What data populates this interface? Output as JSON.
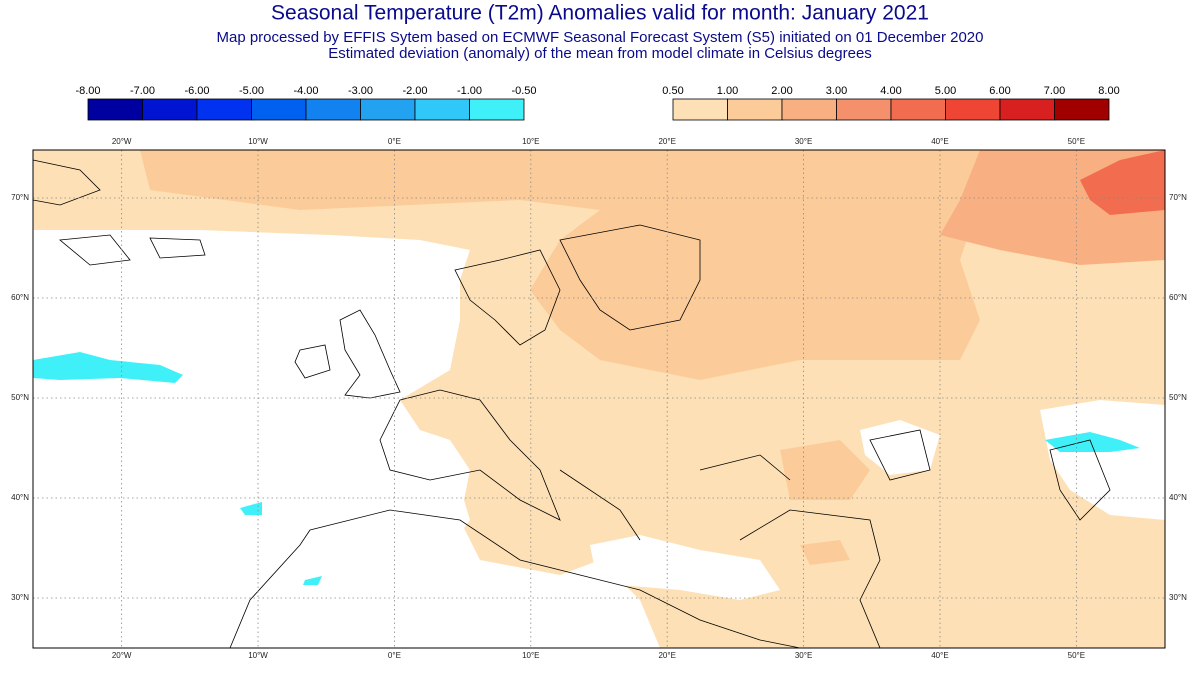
{
  "header": {
    "title": "Seasonal Temperature (T2m) Anomalies valid for month: January 2021",
    "subtitle": "Map processed by EFFIS Sytem based on ECMWF Seasonal Forecast System (S5) initiated on 01 December 2020",
    "description": "Estimated deviation (anomaly) of the mean from model climate in Celsius degrees"
  },
  "legend": {
    "negative": {
      "labels": [
        "-8.00",
        "-7.00",
        "-6.00",
        "-5.00",
        "-4.00",
        "-3.00",
        "-2.00",
        "-1.00",
        "-0.50"
      ],
      "colors": [
        "#0000a0",
        "#0014d2",
        "#0032f0",
        "#0060f0",
        "#1282f0",
        "#22a2f0",
        "#30c8f8",
        "#40f0f8"
      ]
    },
    "positive": {
      "labels": [
        "0.50",
        "1.00",
        "2.00",
        "3.00",
        "4.00",
        "5.00",
        "6.00",
        "7.00",
        "8.00"
      ],
      "colors": [
        "#fde0b5",
        "#fbcc9a",
        "#f8b083",
        "#f5906c",
        "#f26c50",
        "#ee4535",
        "#d92020",
        "#a00000"
      ]
    }
  },
  "map": {
    "xlim": [
      -26.5,
      56.5
    ],
    "ylim": [
      25,
      74.8
    ],
    "xticks": [
      {
        "value": -20,
        "label": "20°W"
      },
      {
        "value": -10,
        "label": "10°W"
      },
      {
        "value": 0,
        "label": "0°E"
      },
      {
        "value": 10,
        "label": "10°E"
      },
      {
        "value": 20,
        "label": "20°E"
      },
      {
        "value": 30,
        "label": "30°E"
      },
      {
        "value": 40,
        "label": "40°E"
      },
      {
        "value": 50,
        "label": "50°E"
      }
    ],
    "yticks": [
      {
        "value": 70,
        "label": "70°N"
      },
      {
        "value": 60,
        "label": "60°N"
      },
      {
        "value": 50,
        "label": "50°N"
      },
      {
        "value": 40,
        "label": "40°N"
      },
      {
        "value": 30,
        "label": "30°N"
      }
    ],
    "grid": true
  }
}
